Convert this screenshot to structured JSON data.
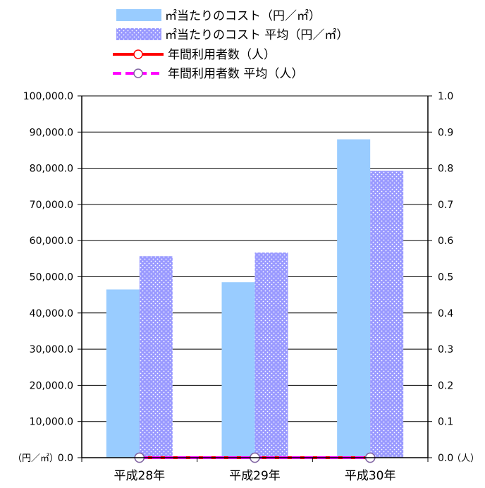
{
  "chart_data": {
    "type": "bar",
    "categories": [
      "平成28年",
      "平成29年",
      "平成30年"
    ],
    "series": [
      {
        "name": "㎡当たりのコスト（円／㎡）",
        "type": "bar",
        "axis": "left",
        "color": "#99ccff",
        "values": [
          46500,
          48500,
          88000
        ]
      },
      {
        "name": "㎡当たりのコスト 平均（円／㎡）",
        "type": "bar",
        "axis": "left",
        "color": "#9999ff",
        "pattern": "dots",
        "values": [
          55700,
          56700,
          79300
        ]
      },
      {
        "name": "年間利用者数（人）",
        "type": "line",
        "axis": "right",
        "color": "#ff0000",
        "values": [
          0,
          0,
          0
        ]
      },
      {
        "name": "年間利用者数 平均（人）",
        "type": "line",
        "axis": "right",
        "color": "#ff00ff",
        "dashed": true,
        "values": [
          0,
          0,
          0
        ]
      }
    ],
    "y_left": {
      "unit_label": "（円／㎡）",
      "ylim": [
        0,
        100000
      ],
      "ticks": [
        "0.0",
        "10,000.0",
        "20,000.0",
        "30,000.0",
        "40,000.0",
        "50,000.0",
        "60,000.0",
        "70,000.0",
        "80,000.0",
        "90,000.0",
        "100,000.0"
      ]
    },
    "y_right": {
      "unit_label": "（人）",
      "ylim": [
        0,
        1.0
      ],
      "ticks": [
        "0.0",
        "0.1",
        "0.2",
        "0.3",
        "0.4",
        "0.5",
        "0.6",
        "0.7",
        "0.8",
        "0.9",
        "1.0"
      ]
    },
    "grid": true,
    "legend_position": "top"
  }
}
